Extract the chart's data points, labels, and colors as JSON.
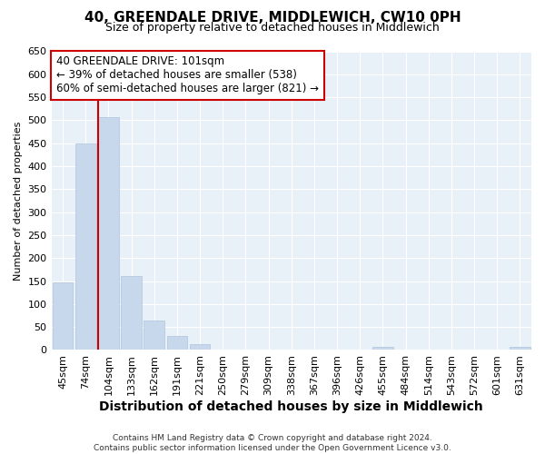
{
  "title": "40, GREENDALE DRIVE, MIDDLEWICH, CW10 0PH",
  "subtitle": "Size of property relative to detached houses in Middlewich",
  "xlabel": "Distribution of detached houses by size in Middlewich",
  "ylabel": "Number of detached properties",
  "footer": "Contains HM Land Registry data © Crown copyright and database right 2024.\nContains public sector information licensed under the Open Government Licence v3.0.",
  "bar_labels": [
    "45sqm",
    "74sqm",
    "104sqm",
    "133sqm",
    "162sqm",
    "191sqm",
    "221sqm",
    "250sqm",
    "279sqm",
    "309sqm",
    "338sqm",
    "367sqm",
    "396sqm",
    "426sqm",
    "455sqm",
    "484sqm",
    "514sqm",
    "543sqm",
    "572sqm",
    "601sqm",
    "631sqm"
  ],
  "bar_values": [
    147,
    450,
    507,
    160,
    65,
    30,
    12,
    0,
    0,
    0,
    0,
    0,
    0,
    0,
    7,
    0,
    0,
    0,
    0,
    0,
    7
  ],
  "bar_color": "#c8d8ec",
  "bar_edge_color": "#b0c4de",
  "red_line_index": 2,
  "ylim": [
    0,
    650
  ],
  "yticks": [
    0,
    50,
    100,
    150,
    200,
    250,
    300,
    350,
    400,
    450,
    500,
    550,
    600,
    650
  ],
  "annotation_line1": "40 GREENDALE DRIVE: 101sqm",
  "annotation_line2": "← 39% of detached houses are smaller (538)",
  "annotation_line3": "60% of semi-detached houses are larger (821) →",
  "annotation_box_facecolor": "#ffffff",
  "annotation_box_edgecolor": "#cc0000",
  "plot_bg_color": "#e8f0f8",
  "fig_bg_color": "#ffffff",
  "grid_color": "#ffffff",
  "title_fontsize": 11,
  "subtitle_fontsize": 9,
  "ylabel_fontsize": 8,
  "xlabel_fontsize": 10,
  "tick_fontsize": 8,
  "xtick_fontsize": 8,
  "footer_fontsize": 6.5
}
